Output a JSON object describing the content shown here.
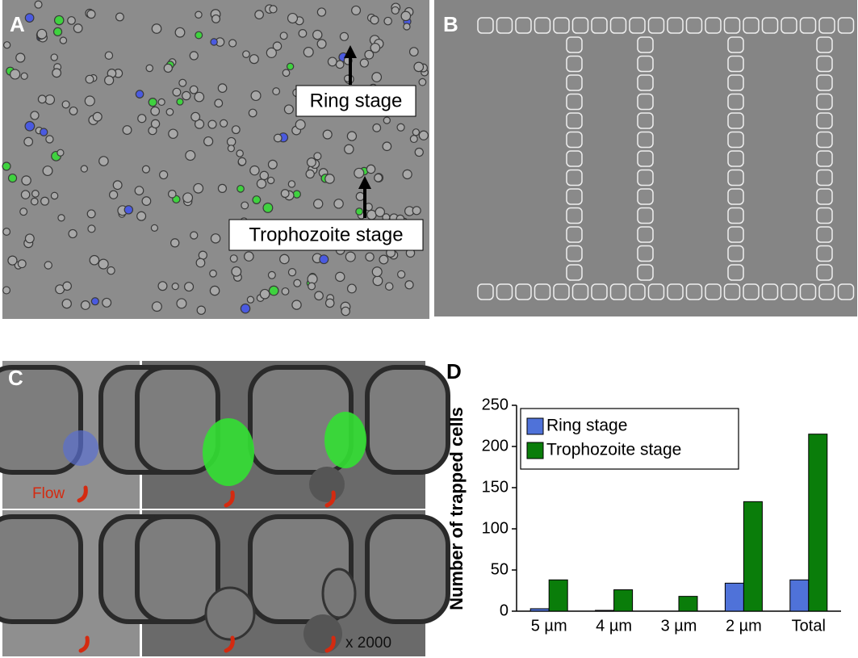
{
  "panels": {
    "a": {
      "label": "A",
      "annotations": [
        "Ring stage",
        "Trophozoite stage"
      ]
    },
    "b": {
      "label": "B"
    },
    "c": {
      "label": "C",
      "flow_label": "Flow",
      "magnification": "x 2000"
    }
  },
  "chart_data": {
    "type": "bar",
    "panel_label": "D",
    "y_label": "Number of trapped cells",
    "categories": [
      "5 µm",
      "4 µm",
      "3 µm",
      "2 µm",
      "Total"
    ],
    "series": [
      {
        "name": "Ring stage",
        "color": "#4f72d9",
        "values": [
          3,
          1,
          0,
          34,
          38
        ]
      },
      {
        "name": "Trophozoite stage",
        "color": "#0a7d0a",
        "values": [
          38,
          26,
          18,
          133,
          215
        ]
      }
    ],
    "ylim": [
      0,
      250
    ],
    "yticks": [
      0,
      50,
      100,
      150,
      200,
      250
    ],
    "legend": "upper left"
  }
}
